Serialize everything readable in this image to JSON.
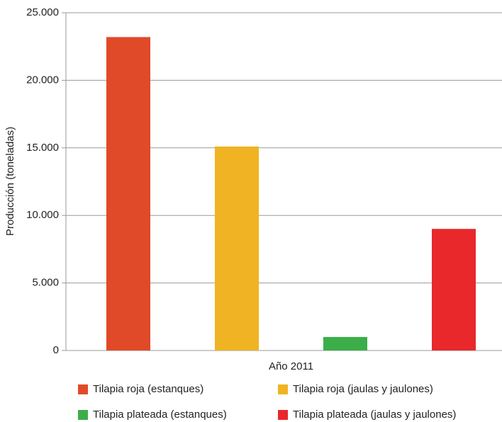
{
  "chart_data": {
    "type": "bar",
    "y_label": "Producción (toneladas)",
    "categories": [
      "Año 2011"
    ],
    "series": [
      {
        "name": "Tilapia roja (estanques)",
        "color": "#e04a28",
        "values": [
          23200
        ]
      },
      {
        "name": "Tilapia roja (jaulas y jaulones)",
        "color": "#f0b323",
        "values": [
          15100
        ]
      },
      {
        "name": "Tilapia plateada (estanques)",
        "color": "#3cae49",
        "values": [
          1000
        ]
      },
      {
        "name": "Tilapia plateada (jaulas y jaulones)",
        "color": "#e8282b",
        "values": [
          9000
        ]
      }
    ],
    "ylim": [
      0,
      25000
    ],
    "yticks": [
      0,
      {
        "value": 5000,
        "label": "5.000"
      },
      {
        "value": 10000,
        "label": "10.000"
      },
      {
        "value": 15000,
        "label": "15.000"
      },
      {
        "value": 20000,
        "label": "20.000"
      },
      {
        "value": 25000,
        "label": "25.000"
      }
    ],
    "grid": true,
    "legend": "bottom"
  }
}
